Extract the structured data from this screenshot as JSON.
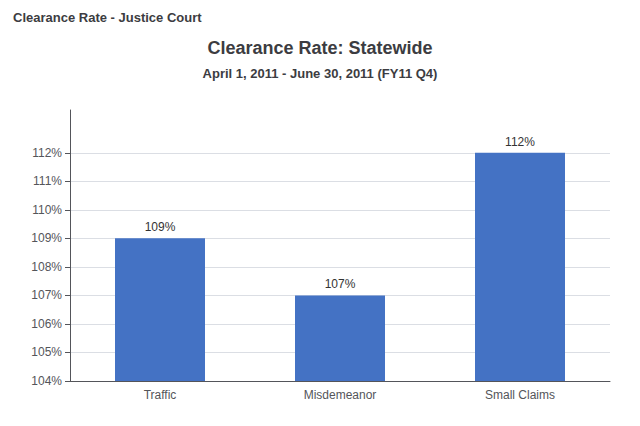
{
  "chart_data": {
    "type": "bar",
    "page_title": "Clearance Rate - Justice Court",
    "title": "Clearance Rate: Statewide",
    "subtitle": "April 1, 2011 - June 30, 2011 (FY11 Q4)",
    "categories": [
      "Traffic",
      "Misdemeanor",
      "Small Claims"
    ],
    "values": [
      109,
      107,
      112
    ],
    "value_labels": [
      "109%",
      "107%",
      "112%"
    ],
    "data_labels": true,
    "color": "#4472C4",
    "ylim": [
      104,
      113.5
    ],
    "yticks": [
      {
        "value": 104,
        "label": "104%"
      },
      {
        "value": 105,
        "label": "105%"
      },
      {
        "value": 106,
        "label": "106%"
      },
      {
        "value": 107,
        "label": "107%"
      },
      {
        "value": 108,
        "label": "108%"
      },
      {
        "value": 109,
        "label": "109%"
      },
      {
        "value": 110,
        "label": "110%"
      },
      {
        "value": 111,
        "label": "111%"
      },
      {
        "value": 112,
        "label": "112%"
      }
    ],
    "grid": true
  }
}
